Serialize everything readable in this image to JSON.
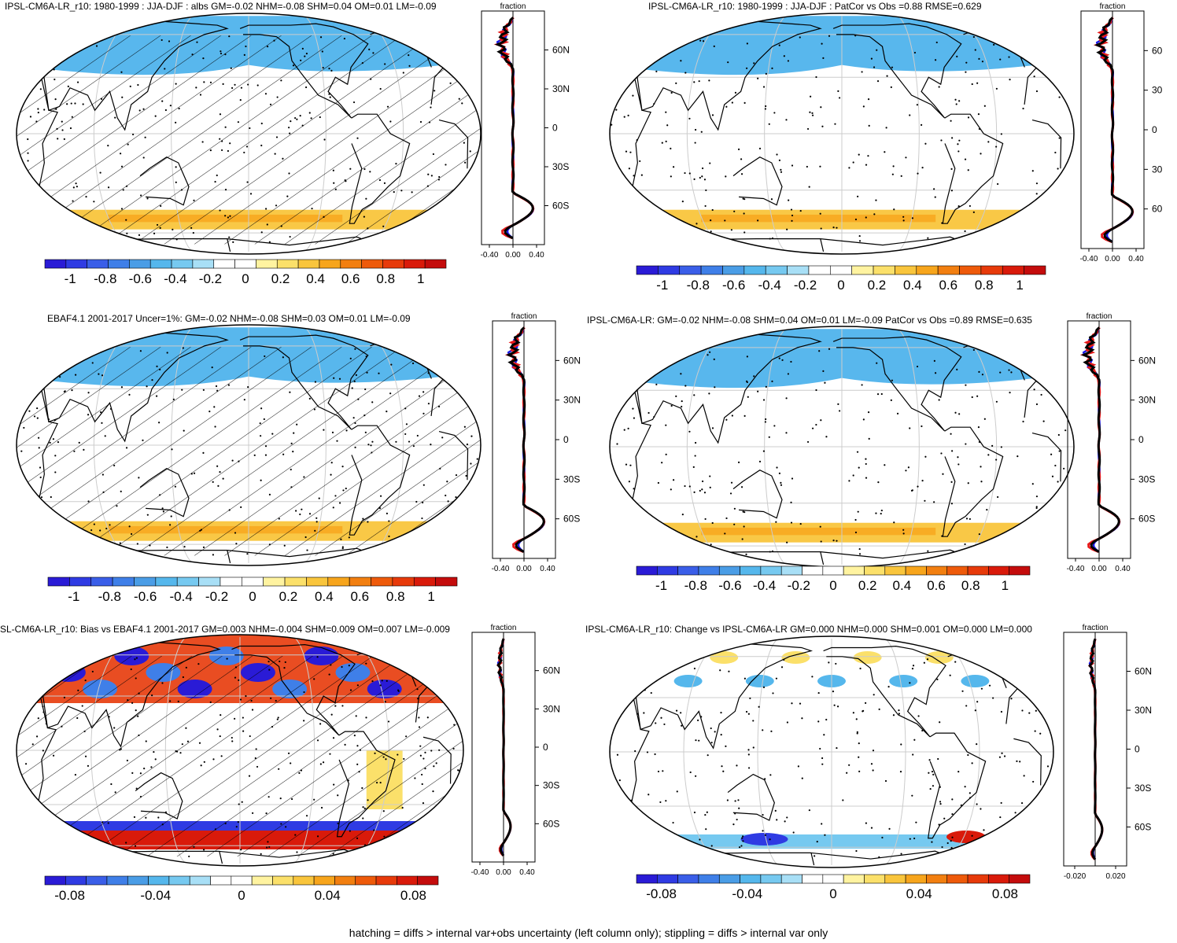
{
  "caption": "hatching = diffs > internal var+obs uncertainty (left column only); stippling = diffs > internal var only",
  "colorbar_colors": [
    "#2a1bd6",
    "#2f3be3",
    "#3a5ee8",
    "#3f7fe8",
    "#4a9de6",
    "#55b7ec",
    "#76c9f0",
    "#a8dff6",
    "#ffffff",
    "#ffffff",
    "#fff3a0",
    "#fbe06a",
    "#f9c53c",
    "#f7a51c",
    "#f27f10",
    "#ee5a0a",
    "#e73a0a",
    "#d91a0a",
    "#c40c0c"
  ],
  "ocean_color": "#ffffff",
  "land_line_color": "#000000",
  "grid_color": "#cccccc",
  "zonal_axis_title": "fraction",
  "panels": [
    {
      "id": "p1",
      "title": "IPSL-CM6A-LR_r10: 1980-1999 : JJA-DJF : albs GM=-0.02 NHM=-0.08 SHM=0.04 OM=0.01 LM=-0.09",
      "cbar_labels": [
        "-1",
        "-0.8",
        "-0.6",
        "-0.4",
        "-0.2",
        "0",
        "0.2",
        "0.4",
        "0.6",
        "0.8",
        "1"
      ],
      "zonal_ticks": [
        "-0.40",
        "0.00",
        "0.40"
      ],
      "lat_labels": [
        "60N",
        "30N",
        "0",
        "30S",
        "60S"
      ],
      "hatched": true
    },
    {
      "id": "p2",
      "title": "IPSL-CM6A-LR_r10: 1980-1999 : JJA-DJF : PatCor vs Obs =0.88 RMSE=0.629",
      "cbar_labels": [
        "-1",
        "-0.8",
        "-0.6",
        "-0.4",
        "-0.2",
        "0",
        "0.2",
        "0.4",
        "0.6",
        "0.8",
        "1"
      ],
      "zonal_ticks": [
        "-0.40",
        "0.00",
        "0.40"
      ],
      "lat_labels": [
        "60",
        "30",
        "0",
        "30",
        "60"
      ],
      "hatched": false
    },
    {
      "id": "p3",
      "title": "EBAF4.1 2001-2017 Uncer=1%: GM=-0.02 NHM=-0.08 SHM=0.03 OM=0.01 LM=-0.09",
      "cbar_labels": [
        "-1",
        "-0.8",
        "-0.6",
        "-0.4",
        "-0.2",
        "0",
        "0.2",
        "0.4",
        "0.6",
        "0.8",
        "1"
      ],
      "zonal_ticks": [
        "-0.40",
        "0.00",
        "0.40"
      ],
      "lat_labels": [
        "60N",
        "30N",
        "0",
        "30S",
        "60S"
      ],
      "hatched": true
    },
    {
      "id": "p4",
      "title": "IPSL-CM6A-LR: GM=-0.02 NHM=-0.08 SHM=0.04 OM=0.01 LM=-0.09 PatCor vs Obs =0.89 RMSE=0.635",
      "cbar_labels": [
        "-1",
        "-0.8",
        "-0.6",
        "-0.4",
        "-0.2",
        "0",
        "0.2",
        "0.4",
        "0.6",
        "0.8",
        "1"
      ],
      "zonal_ticks": [
        "-0.40",
        "0.00",
        "0.40"
      ],
      "lat_labels": [
        "60N",
        "30N",
        "0",
        "30S",
        "60S"
      ],
      "hatched": false
    },
    {
      "id": "p5",
      "title": "SL-CM6A-LR_r10: Bias vs EBAF4.1 2001-2017 GM=0.003 NHM=-0.004 SHM=0.009 OM=0.007 LM=-0.009",
      "cbar_labels": [
        "-0.08",
        "-0.04",
        "0",
        "0.04",
        "0.08"
      ],
      "zonal_ticks": [
        "-0.40",
        "0.00",
        "0.40"
      ],
      "lat_labels": [
        "60N",
        "30N",
        "0",
        "30S",
        "60S"
      ],
      "hatched": true
    },
    {
      "id": "p6",
      "title": "IPSL-CM6A-LR_r10: Change vs IPSL-CM6A-LR GM=0.000 NHM=0.000 SHM=0.001 OM=0.000 LM=0.000",
      "cbar_labels": [
        "-0.08",
        "-0.04",
        "0",
        "0.04",
        "0.08"
      ],
      "zonal_ticks": [
        "-0.020",
        "0.020"
      ],
      "lat_labels": [
        "60N",
        "30N",
        "0",
        "30S",
        "60S"
      ],
      "hatched": false
    }
  ]
}
